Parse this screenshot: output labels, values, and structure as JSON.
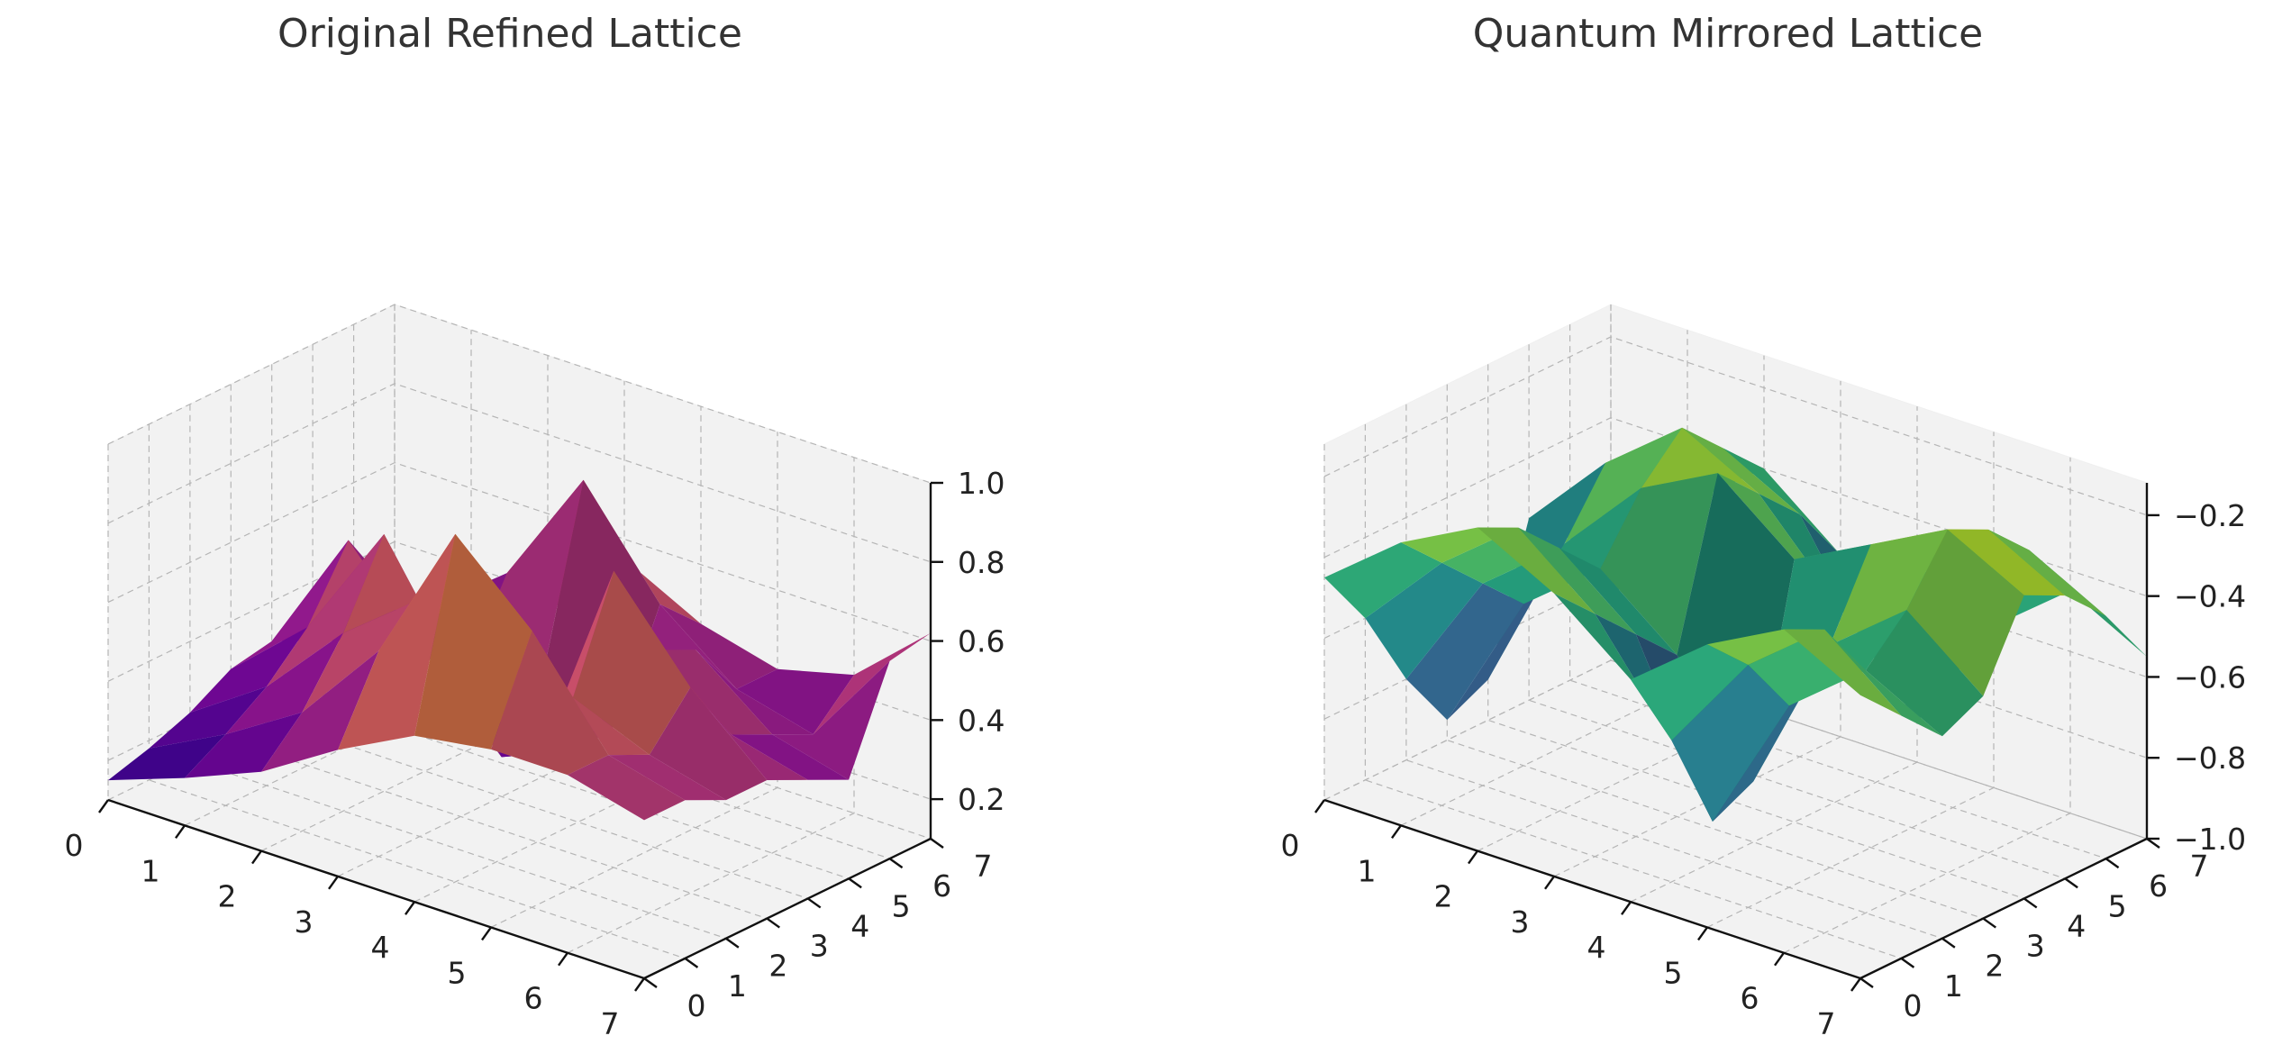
{
  "chart_data": [
    {
      "type": "surface",
      "title": "Original Refined Lattice",
      "colormap": "plasma",
      "x": [
        0,
        1,
        2,
        3,
        4,
        5,
        6,
        7
      ],
      "y": [
        0,
        1,
        2,
        3,
        4,
        5,
        6,
        7
      ],
      "xticks": [
        "0",
        "1",
        "2",
        "3",
        "4",
        "5",
        "6",
        "7"
      ],
      "yticks": [
        "0",
        "1",
        "2",
        "3",
        "4",
        "5",
        "6",
        "7"
      ],
      "zticks": [
        "0.2",
        "0.4",
        "0.6",
        "0.8",
        "1.0"
      ],
      "zlim": [
        0.1,
        1.0
      ],
      "grid": true,
      "z": [
        [
          0.15,
          0.22,
          0.3,
          0.42,
          0.52,
          0.55,
          0.55,
          0.5
        ],
        [
          0.18,
          0.28,
          0.4,
          0.62,
          0.98,
          0.8,
          0.55,
          0.5
        ],
        [
          0.22,
          0.35,
          0.55,
          0.7,
          0.62,
          0.58,
          0.5,
          0.45
        ],
        [
          0.28,
          0.45,
          0.75,
          0.45,
          0.3,
          0.85,
          0.62,
          0.45
        ],
        [
          0.3,
          0.62,
          0.4,
          0.2,
          0.28,
          0.6,
          0.45,
          0.4
        ],
        [
          0.25,
          0.45,
          0.3,
          0.35,
          0.3,
          0.55,
          0.4,
          0.35
        ],
        [
          0.2,
          0.35,
          0.5,
          0.8,
          0.55,
          0.4,
          0.35,
          0.6
        ],
        [
          0.15,
          0.25,
          0.35,
          0.55,
          0.45,
          0.4,
          0.45,
          0.62
        ]
      ]
    },
    {
      "type": "surface",
      "title": "Quantum Mirrored Lattice",
      "colormap": "viridis",
      "x": [
        0,
        1,
        2,
        3,
        4,
        5,
        6,
        7
      ],
      "y": [
        0,
        1,
        2,
        3,
        4,
        5,
        6,
        7
      ],
      "xticks": [
        "0",
        "1",
        "2",
        "3",
        "4",
        "5",
        "6",
        "7"
      ],
      "yticks": [
        "0",
        "1",
        "2",
        "3",
        "4",
        "5",
        "6",
        "7"
      ],
      "zticks": [
        "−1.0",
        "−0.8",
        "−0.6",
        "−0.4",
        "−0.2"
      ],
      "zlim": [
        -1.0,
        -0.12
      ],
      "grid": true,
      "z": [
        [
          -0.45,
          -0.3,
          -0.2,
          -0.3,
          -0.45,
          -0.3,
          -0.2,
          -0.3
        ],
        [
          -0.6,
          -0.4,
          -0.25,
          -0.4,
          -0.65,
          -0.4,
          -0.25,
          -0.4
        ],
        [
          -0.8,
          -0.5,
          -0.35,
          -0.5,
          -0.9,
          -0.55,
          -0.4,
          -0.5
        ],
        [
          -0.95,
          -0.6,
          -0.45,
          -0.6,
          -0.85,
          -0.45,
          -0.3,
          -0.45
        ],
        [
          -0.9,
          -0.5,
          -0.3,
          -0.2,
          -0.35,
          -0.25,
          -0.15,
          -0.25
        ],
        [
          -0.55,
          -0.35,
          -0.2,
          -0.3,
          -0.5,
          -0.35,
          -0.2,
          -0.3
        ],
        [
          -0.65,
          -0.4,
          -0.3,
          -0.4,
          -0.7,
          -0.45,
          -0.3,
          -0.4
        ],
        [
          -0.85,
          -0.55,
          -0.4,
          -0.55,
          -0.9,
          -0.6,
          -0.45,
          -0.55
        ]
      ]
    }
  ]
}
